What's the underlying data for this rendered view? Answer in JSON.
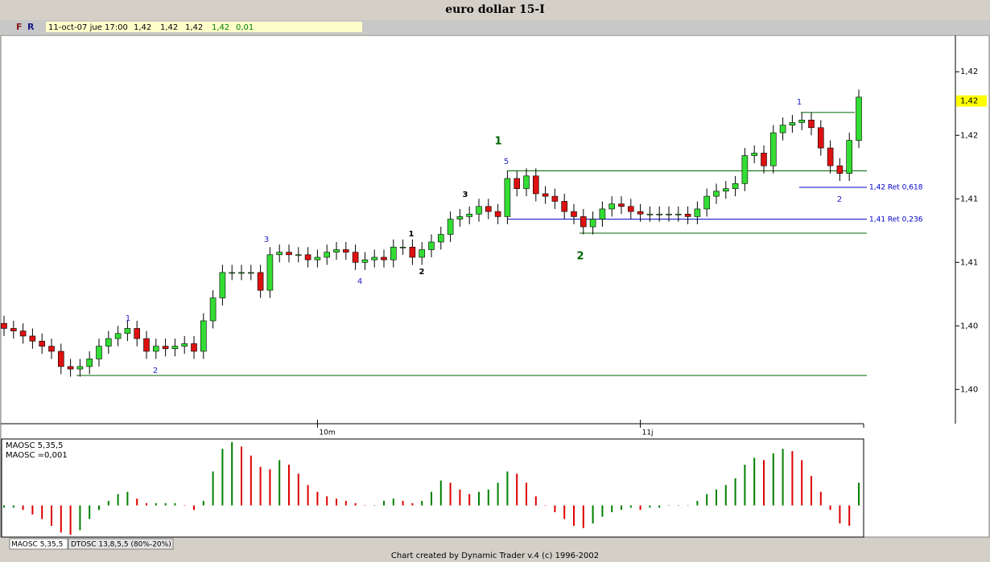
{
  "window_title": "euro dollar 15-I",
  "toolbar": {
    "buttons": [
      "F",
      "R"
    ],
    "info": [
      "11-oct-07 jue 17:00",
      "1,42",
      "1,42",
      "1,42",
      "1,42",
      "0,01"
    ]
  },
  "chart_data": [
    {
      "type": "candlestick",
      "categories": [
        null,
        null,
        null,
        null,
        null,
        null,
        null,
        null,
        null,
        null,
        null,
        null,
        null,
        null,
        null,
        null,
        null,
        null,
        null,
        null,
        null,
        null,
        null,
        null,
        null,
        null,
        null,
        null,
        null,
        null,
        null,
        null,
        null,
        "10m",
        null,
        null,
        null,
        null,
        null,
        null,
        null,
        null,
        null,
        null,
        null,
        null,
        null,
        null,
        null,
        null,
        null,
        null,
        null,
        null,
        null,
        null,
        null,
        null,
        null,
        null,
        null,
        null,
        null,
        null,
        null,
        null,
        null,
        "11j",
        null,
        null,
        null,
        null,
        null,
        null,
        null,
        null,
        null,
        null,
        null,
        null,
        null,
        null,
        null,
        null,
        null,
        null,
        null,
        null,
        null,
        null,
        null
      ],
      "open": [
        1.4002,
        1.3998,
        1.3996,
        1.3992,
        1.3988,
        1.3984,
        1.398,
        1.3968,
        1.3966,
        1.3968,
        1.3974,
        1.3984,
        1.399,
        1.3994,
        1.3998,
        1.399,
        1.398,
        1.3984,
        1.3982,
        1.3984,
        1.3986,
        1.398,
        1.4004,
        1.4022,
        1.4042,
        1.4042,
        1.4042,
        1.4042,
        1.4028,
        1.4056,
        1.4058,
        1.4056,
        1.4056,
        1.4052,
        1.4054,
        1.4058,
        1.406,
        1.4058,
        1.405,
        1.4052,
        1.4054,
        1.4052,
        1.4062,
        1.4062,
        1.4054,
        1.406,
        1.4066,
        1.4072,
        1.4084,
        1.4086,
        1.4088,
        1.4094,
        1.409,
        1.4086,
        1.4116,
        1.4108,
        1.4118,
        1.4104,
        1.4102,
        1.4098,
        1.409,
        1.4086,
        1.4078,
        1.4084,
        1.4092,
        1.4096,
        1.4094,
        1.409,
        1.4088,
        1.4088,
        1.4088,
        1.4088,
        1.4088,
        1.4086,
        1.4092,
        1.4102,
        1.4106,
        1.4108,
        1.4112,
        1.4134,
        1.4136,
        1.4126,
        1.4152,
        1.4158,
        1.416,
        1.4162,
        1.4156,
        1.414,
        1.4126,
        1.412,
        1.4146
      ],
      "high": [
        1.4008,
        1.4004,
        1.4002,
        1.3998,
        1.3994,
        1.399,
        1.3986,
        1.3974,
        1.3974,
        1.398,
        1.399,
        1.3996,
        1.4,
        1.4004,
        1.4004,
        1.3996,
        1.399,
        1.399,
        1.399,
        1.3992,
        1.3992,
        1.401,
        1.4028,
        1.4048,
        1.4048,
        1.4048,
        1.4048,
        1.4048,
        1.4062,
        1.4064,
        1.4064,
        1.4062,
        1.4062,
        1.406,
        1.4064,
        1.4066,
        1.4066,
        1.4064,
        1.4058,
        1.406,
        1.406,
        1.4068,
        1.4068,
        1.4068,
        1.4066,
        1.4072,
        1.4078,
        1.409,
        1.4092,
        1.4094,
        1.41,
        1.41,
        1.4096,
        1.4122,
        1.4122,
        1.4124,
        1.4124,
        1.411,
        1.4108,
        1.4104,
        1.4096,
        1.4092,
        1.409,
        1.4098,
        1.4102,
        1.4102,
        1.41,
        1.4096,
        1.4094,
        1.4094,
        1.4094,
        1.4094,
        1.4094,
        1.4098,
        1.4108,
        1.4112,
        1.4114,
        1.4118,
        1.414,
        1.4142,
        1.4142,
        1.4158,
        1.4164,
        1.4166,
        1.4168,
        1.4168,
        1.4162,
        1.4146,
        1.4132,
        1.4152,
        1.4186
      ],
      "low": [
        1.3992,
        1.399,
        1.3986,
        1.3982,
        1.3978,
        1.3974,
        1.3962,
        1.396,
        1.396,
        1.3962,
        1.3968,
        1.3978,
        1.3984,
        1.3988,
        1.3984,
        1.3974,
        1.3974,
        1.3976,
        1.3976,
        1.3978,
        1.3974,
        1.3974,
        1.3998,
        1.4016,
        1.4036,
        1.4036,
        1.4036,
        1.4022,
        1.4022,
        1.405,
        1.405,
        1.405,
        1.4046,
        1.4046,
        1.4048,
        1.4052,
        1.4052,
        1.4044,
        1.4044,
        1.4046,
        1.4046,
        1.4046,
        1.4056,
        1.4048,
        1.4048,
        1.4054,
        1.406,
        1.4066,
        1.4078,
        1.408,
        1.4082,
        1.4084,
        1.408,
        1.408,
        1.4102,
        1.4102,
        1.4098,
        1.4096,
        1.4092,
        1.4084,
        1.408,
        1.4072,
        1.4072,
        1.4078,
        1.4086,
        1.4088,
        1.4084,
        1.4082,
        1.4082,
        1.4082,
        1.4082,
        1.4082,
        1.408,
        1.408,
        1.4086,
        1.4096,
        1.41,
        1.4102,
        1.4106,
        1.4128,
        1.412,
        1.412,
        1.4146,
        1.4152,
        1.4154,
        1.415,
        1.4134,
        1.412,
        1.4114,
        1.4114,
        1.414
      ],
      "close": [
        1.3998,
        1.3996,
        1.3992,
        1.3988,
        1.3984,
        1.398,
        1.3968,
        1.3966,
        1.3968,
        1.3974,
        1.3984,
        1.399,
        1.3994,
        1.3998,
        1.399,
        1.398,
        1.3984,
        1.3982,
        1.3984,
        1.3986,
        1.398,
        1.4004,
        1.4022,
        1.4042,
        1.4042,
        1.4042,
        1.4042,
        1.4028,
        1.4056,
        1.4058,
        1.4056,
        1.4056,
        1.4052,
        1.4054,
        1.4058,
        1.406,
        1.4058,
        1.405,
        1.4052,
        1.4054,
        1.4052,
        1.4062,
        1.4062,
        1.4054,
        1.406,
        1.4066,
        1.4072,
        1.4084,
        1.4086,
        1.4088,
        1.4094,
        1.409,
        1.4086,
        1.4116,
        1.4108,
        1.4118,
        1.4104,
        1.4102,
        1.4098,
        1.409,
        1.4086,
        1.4078,
        1.4084,
        1.4092,
        1.4096,
        1.4094,
        1.409,
        1.4088,
        1.4088,
        1.4088,
        1.4088,
        1.4088,
        1.4086,
        1.4092,
        1.4102,
        1.4106,
        1.4108,
        1.4112,
        1.4134,
        1.4136,
        1.4126,
        1.4152,
        1.4158,
        1.416,
        1.4162,
        1.4156,
        1.414,
        1.4126,
        1.412,
        1.4146,
        1.418
      ],
      "up_color": "#33dd33",
      "down_color": "#dd1111",
      "ylim": [
        1.3923,
        1.4228
      ],
      "yticks": [
        {
          "value": 1.42,
          "label": "1,42"
        },
        {
          "value": 1.415,
          "label": "1,42"
        },
        {
          "value": 1.41,
          "label": "1,41"
        },
        {
          "value": 1.405,
          "label": "1,41"
        },
        {
          "value": 1.4,
          "label": "1,40"
        },
        {
          "value": 1.395,
          "label": "1,40"
        }
      ],
      "last_price": {
        "value": 1.4177,
        "label": "1,42"
      },
      "levels": [
        {
          "value": 1.3961,
          "color": "#006600"
        },
        {
          "value": 1.4122,
          "color": "#006600"
        },
        {
          "value": 1.4073,
          "color": "#006600"
        },
        {
          "value": 1.4168,
          "color": "#006600"
        },
        {
          "value": 1.4109,
          "color": "#0000cc"
        },
        {
          "value": 1.4084,
          "color": "#0000cc"
        }
      ],
      "annotations": [
        {
          "text": "1",
          "color": "#2222cc"
        },
        {
          "text": "2",
          "color": "#2222cc"
        },
        {
          "text": "3",
          "color": "#2222cc"
        },
        {
          "text": "4",
          "color": "#2222cc"
        },
        {
          "text": "1",
          "color": "#000000"
        },
        {
          "text": "2",
          "color": "#000000"
        },
        {
          "text": "3",
          "color": "#000000"
        },
        {
          "text": "5",
          "color": "#2222cc"
        },
        {
          "text": "1",
          "color": "#006600"
        },
        {
          "text": "2",
          "color": "#006600"
        },
        {
          "text": "1",
          "color": "#2222cc"
        },
        {
          "text": "2",
          "color": "#2222cc"
        },
        {
          "text": "1,42 Ret 0,618",
          "color": "#0000cc"
        },
        {
          "text": "1,41 Ret 0,236",
          "color": "#0000cc"
        }
      ]
    },
    {
      "type": "bar",
      "title": "MAOSC 5,35,5",
      "subtitle": "MAOSC =0,001",
      "values": [
        -0.0001,
        -0.0001,
        -0.0002,
        -0.0004,
        -0.0006,
        -0.0009,
        -0.0012,
        -0.0013,
        -0.0011,
        -0.0006,
        -0.0002,
        0.0002,
        0.0005,
        0.0006,
        0.0003,
        0.0001,
        0.0001,
        0.0001,
        0.0001,
        0,
        -0.0002,
        0.0002,
        0.0015,
        0.0025,
        0.0028,
        0.0026,
        0.0022,
        0.0017,
        0.0016,
        0.002,
        0.0018,
        0.0014,
        0.0009,
        0.0006,
        0.0004,
        0.0003,
        0.0002,
        0.0001,
        0,
        0,
        0.0002,
        0.0003,
        0.0002,
        0.0001,
        0.0002,
        0.0006,
        0.0011,
        0.001,
        0.0007,
        0.0005,
        0.0006,
        0.0007,
        0.001,
        0.0015,
        0.0014,
        0.001,
        0.0004,
        0,
        -0.0003,
        -0.0006,
        -0.0009,
        -0.001,
        -0.0008,
        -0.0005,
        -0.0003,
        -0.0002,
        -0.0001,
        -0.0002,
        -0.0001,
        -0.0001,
        0,
        0,
        0,
        0.0002,
        0.0005,
        0.0007,
        0.0009,
        0.0012,
        0.0018,
        0.0021,
        0.002,
        0.0023,
        0.0025,
        0.0024,
        0.002,
        0.0013,
        0.0006,
        -0.0002,
        -0.0008,
        -0.0009,
        0.001
      ],
      "up_color": "#008000",
      "down_color": "#dd0000",
      "ylim": [
        -0.0014,
        0.0029
      ]
    }
  ],
  "tabs": [
    "MAOSC 5,35,5",
    "DTOSC 13,8,5,5 (80%-20%)"
  ],
  "footer": "Chart created by Dynamic Trader v.4  (c) 1996-2002"
}
